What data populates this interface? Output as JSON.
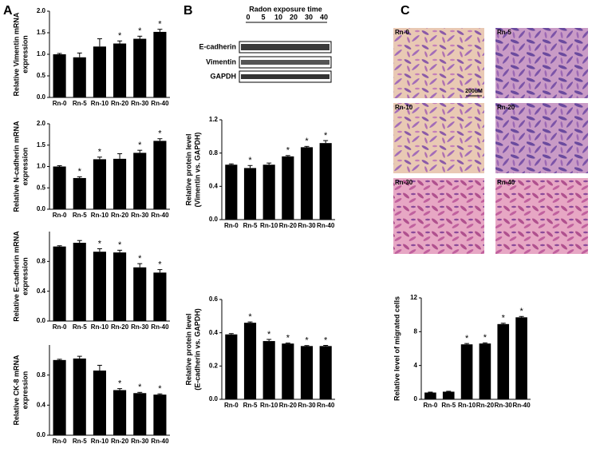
{
  "panels": [
    "A",
    "B",
    "C"
  ],
  "blot": {
    "title": "Radon exposure time",
    "lanes": [
      0,
      5,
      10,
      20,
      30,
      40
    ],
    "rows": [
      "E-cadherin",
      "Vimentin",
      "GAPDH"
    ]
  },
  "images": {
    "labels": [
      "Rn-0",
      "Rn-5",
      "Rn-10",
      "Rn-20",
      "Rn-30",
      "Rn-40"
    ],
    "scale": "200uM"
  },
  "chart_data": [
    {
      "type": "bar",
      "ylabel": [
        "Relative Vimentin mRNA",
        "expression"
      ],
      "categories": [
        "Rn-0",
        "Rn-5",
        "Rn-10",
        "Rn-20",
        "Rn-30",
        "Rn-40"
      ],
      "values": [
        1.0,
        0.93,
        1.18,
        1.25,
        1.36,
        1.52
      ],
      "errors": [
        0.02,
        0.1,
        0.18,
        0.06,
        0.06,
        0.06
      ],
      "markers": [
        null,
        null,
        null,
        "*",
        "*",
        "*"
      ],
      "color": "#000000",
      "ylim": [
        0,
        2
      ],
      "yticks": [
        {
          "value": 0,
          "label": "0.0"
        },
        0.5,
        {
          "value": 1,
          "label": "1.0"
        },
        1.5,
        {
          "value": 2,
          "label": "2.0"
        }
      ]
    },
    {
      "type": "bar",
      "ylabel": [
        "Relative N-cadherin mRNA",
        "expression"
      ],
      "categories": [
        "Rn-0",
        "Rn-5",
        "Rn-10",
        "Rn-20",
        "Rn-30",
        "Rn-40"
      ],
      "values": [
        1.0,
        0.73,
        1.17,
        1.18,
        1.32,
        1.6
      ],
      "errors": [
        0.02,
        0.03,
        0.05,
        0.12,
        0.06,
        0.05
      ],
      "markers": [
        null,
        "*",
        "*",
        null,
        "*",
        "*"
      ],
      "color": "#000000",
      "ylim": [
        0,
        2
      ],
      "yticks": [
        {
          "value": 0,
          "label": "0.0"
        },
        0.5,
        {
          "value": 1,
          "label": "1.0"
        },
        1.5,
        {
          "value": 2,
          "label": "2.0"
        }
      ]
    },
    {
      "type": "bar",
      "ylabel": [
        "Relative E-cadherin mRNA",
        "expression"
      ],
      "categories": [
        "Rn-0",
        "Rn-5",
        "Rn-10",
        "Rn-20",
        "Rn-30",
        "Rn-40"
      ],
      "values": [
        1.0,
        1.05,
        0.93,
        0.92,
        0.72,
        0.65
      ],
      "errors": [
        0.01,
        0.03,
        0.04,
        0.03,
        0.05,
        0.04
      ],
      "markers": [
        null,
        null,
        "*",
        "*",
        "*",
        "*"
      ],
      "color": "#000000",
      "ylim": [
        0,
        1.2
      ],
      "yticks": [
        {
          "value": 0,
          "label": "0.0"
        },
        0.4,
        0.8
      ]
    },
    {
      "type": "bar",
      "ylabel": [
        "Relative CK-8 mRNA",
        "expression"
      ],
      "categories": [
        "Rn-0",
        "Rn-5",
        "Rn-10",
        "Rn-20",
        "Rn-30",
        "Rn-40"
      ],
      "values": [
        1.0,
        1.02,
        0.86,
        0.6,
        0.56,
        0.54
      ],
      "errors": [
        0.01,
        0.03,
        0.07,
        0.02,
        0.01,
        0.01
      ],
      "markers": [
        null,
        null,
        null,
        "*",
        "*",
        "*"
      ],
      "color": "#000000",
      "ylim": [
        0,
        1.2
      ],
      "yticks": [
        {
          "value": 0,
          "label": "0.0"
        },
        0.4,
        0.8
      ]
    },
    {
      "type": "bar",
      "ylabel": [
        "Relative protein level",
        "(Vimentin vs. GAPDH)"
      ],
      "categories": [
        "Rn-0",
        "Rn-5",
        "Rn-10",
        "Rn-20",
        "Rn-30",
        "Rn-40"
      ],
      "values": [
        0.66,
        0.62,
        0.66,
        0.76,
        0.87,
        0.92
      ],
      "errors": [
        0.01,
        0.03,
        0.02,
        0.01,
        0.01,
        0.03
      ],
      "markers": [
        null,
        "*",
        null,
        "*",
        "*",
        "*"
      ],
      "color": "#000000",
      "ylim": [
        0,
        1.2
      ],
      "yticks": [
        {
          "value": 0,
          "label": "0.0"
        },
        0.4,
        0.8,
        1.2
      ]
    },
    {
      "type": "bar",
      "ylabel": [
        "Relative protein level",
        "(E-cadherin vs. GAPDH)"
      ],
      "categories": [
        "Rn-0",
        "Rn-5",
        "Rn-10",
        "Rn-20",
        "Rn-30",
        "Rn-40"
      ],
      "values": [
        0.39,
        0.46,
        0.35,
        0.335,
        0.32,
        0.32
      ],
      "errors": [
        0.005,
        0.005,
        0.01,
        0.003,
        0.003,
        0.004
      ],
      "markers": [
        null,
        "*",
        "*",
        "*",
        "*",
        "*"
      ],
      "color": "#000000",
      "ylim": [
        0,
        0.6
      ],
      "yticks": [
        {
          "value": 0,
          "label": "0.0"
        },
        0.2,
        0.4,
        0.6
      ]
    },
    {
      "type": "bar",
      "ylabel": [
        "Relative level of migrated cells"
      ],
      "categories": [
        "Rn-0",
        "Rn-5",
        "Rn-10",
        "Rn-20",
        "Rn-30",
        "Rn-40"
      ],
      "values": [
        0.8,
        0.9,
        6.5,
        6.6,
        8.9,
        9.7
      ],
      "errors": [
        0.05,
        0.05,
        0.1,
        0.08,
        0.1,
        0.1
      ],
      "markers": [
        null,
        null,
        "*",
        "*",
        "*",
        "*"
      ],
      "color": "#000000",
      "ylim": [
        0,
        12
      ],
      "yticks": [
        0,
        4,
        8,
        12
      ]
    }
  ]
}
